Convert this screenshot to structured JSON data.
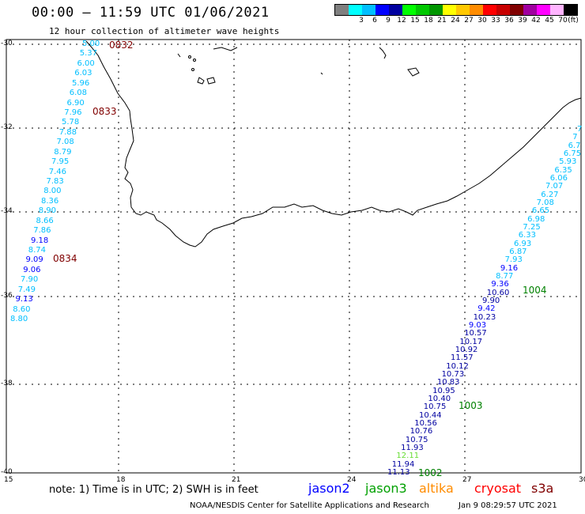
{
  "header": {
    "title": "00:00 – 11:59 UTC 01/06/2021",
    "subtitle": "12 hour collection of altimeter wave heights"
  },
  "legend": {
    "unit": "(ft)",
    "swatches": [
      {
        "color": "#7f7f7f",
        "label": ""
      },
      {
        "color": "#00ffff",
        "label": "3"
      },
      {
        "color": "#00bfff",
        "label": "6"
      },
      {
        "color": "#0000ff",
        "label": "9"
      },
      {
        "color": "#0000a0",
        "label": "12"
      },
      {
        "color": "#00ff00",
        "label": "15"
      },
      {
        "color": "#00c800",
        "label": "18"
      },
      {
        "color": "#009600",
        "label": "21"
      },
      {
        "color": "#ffff00",
        "label": "24"
      },
      {
        "color": "#ffc800",
        "label": "27"
      },
      {
        "color": "#ff8c00",
        "label": "30"
      },
      {
        "color": "#ff0000",
        "label": "33"
      },
      {
        "color": "#c80000",
        "label": "36"
      },
      {
        "color": "#800000",
        "label": "39"
      },
      {
        "color": "#a000a0",
        "label": "42"
      },
      {
        "color": "#ff00ff",
        "label": "45"
      },
      {
        "color": "#ffb4ff",
        "label": "70"
      },
      {
        "color": "#000000",
        "label": ""
      }
    ]
  },
  "axes": {
    "lat_labels": [
      "-30",
      "-32",
      "-34",
      "-36",
      "-38",
      "-40"
    ],
    "lon_labels": [
      "15",
      "18",
      "21",
      "24",
      "27",
      "30"
    ]
  },
  "passes": {
    "west": [
      {
        "time": "0832",
        "color": "#800000"
      },
      {
        "time": "0833",
        "color": "#800000"
      },
      {
        "time": "0834",
        "color": "#800000"
      }
    ],
    "east": [
      {
        "time": "1004",
        "color": "#008000"
      },
      {
        "time": "1003",
        "color": "#008000"
      },
      {
        "time": "1002",
        "color": "#008000"
      }
    ]
  },
  "tracks": {
    "west": [
      "5.00",
      "5.37",
      "6.00",
      "6.03",
      "5.96",
      "6.08",
      "6.90",
      "7.96",
      "5.78",
      "7.88",
      "7.08",
      "8.79",
      "7.95",
      "7.46",
      "7.83",
      "8.00",
      "8.36",
      "8.90",
      "8.66",
      "7.86",
      "9.18",
      "8.74",
      "9.09",
      "9.06",
      "7.90",
      "7.49",
      "9.13",
      "8.60",
      "8.80"
    ],
    "west_colors": [
      "#00bfff",
      "#00bfff",
      "#00bfff",
      "#00bfff",
      "#00bfff",
      "#00bfff",
      "#00bfff",
      "#00bfff",
      "#00bfff",
      "#00bfff",
      "#00bfff",
      "#00bfff",
      "#00bfff",
      "#00bfff",
      "#00bfff",
      "#00bfff",
      "#00bfff",
      "#00bfff",
      "#00bfff",
      "#00bfff",
      "#0000ff",
      "#00bfff",
      "#0000ff",
      "#0000ff",
      "#00bfff",
      "#00bfff",
      "#0000ff",
      "#00bfff",
      "#00bfff"
    ],
    "east": [
      "7",
      "7",
      "6.7",
      "6.75",
      "5.93",
      "6.35",
      "6.06",
      "7.07",
      "6.27",
      "7.08",
      "6.65",
      "6.98",
      "7.25",
      "6.33",
      "6.93",
      "6.87",
      "7.93",
      "9.16",
      "8.77",
      "9.36",
      "10.60",
      "9.90",
      "9.42",
      "10.23",
      "9.03",
      "10.57",
      "10.17",
      "10.92",
      "11.57",
      "10.12",
      "10.73",
      "10.83",
      "10.95",
      "10.40",
      "10.75",
      "10.44",
      "10.56",
      "10.76",
      "10.75",
      "11.93",
      "12.11",
      "11.94",
      "11.13"
    ],
    "east_colors": [
      "#00bfff",
      "#00bfff",
      "#00bfff",
      "#00bfff",
      "#00bfff",
      "#00bfff",
      "#00bfff",
      "#00bfff",
      "#00bfff",
      "#00bfff",
      "#00bfff",
      "#00bfff",
      "#00bfff",
      "#00bfff",
      "#00bfff",
      "#00bfff",
      "#00bfff",
      "#0000ff",
      "#00bfff",
      "#0000ff",
      "#0000a0",
      "#0000a0",
      "#0000ff",
      "#0000a0",
      "#0000ff",
      "#0000a0",
      "#0000a0",
      "#0000a0",
      "#0000a0",
      "#0000a0",
      "#0000a0",
      "#0000a0",
      "#0000a0",
      "#0000a0",
      "#0000a0",
      "#0000a0",
      "#0000a0",
      "#0000a0",
      "#0000a0",
      "#0000a0",
      "#66dd33",
      "#0000a0",
      "#0000a0"
    ]
  },
  "footer": {
    "note": "note: 1) Time is in UTC; 2) SWH is in feet",
    "satellites": [
      {
        "name": "jason2",
        "color": "#0000ff"
      },
      {
        "name": "jason3",
        "color": "#00a000"
      },
      {
        "name": "altika",
        "color": "#ff8c00"
      },
      {
        "name": "cryosat",
        "color": "#ff0000"
      },
      {
        "name": "s3a",
        "color": "#800000"
      }
    ],
    "credit": "NOAA/NESDIS Center for Satellite Applications and Research",
    "timestamp": "Jan  9 08:29:57 UTC 2021"
  }
}
